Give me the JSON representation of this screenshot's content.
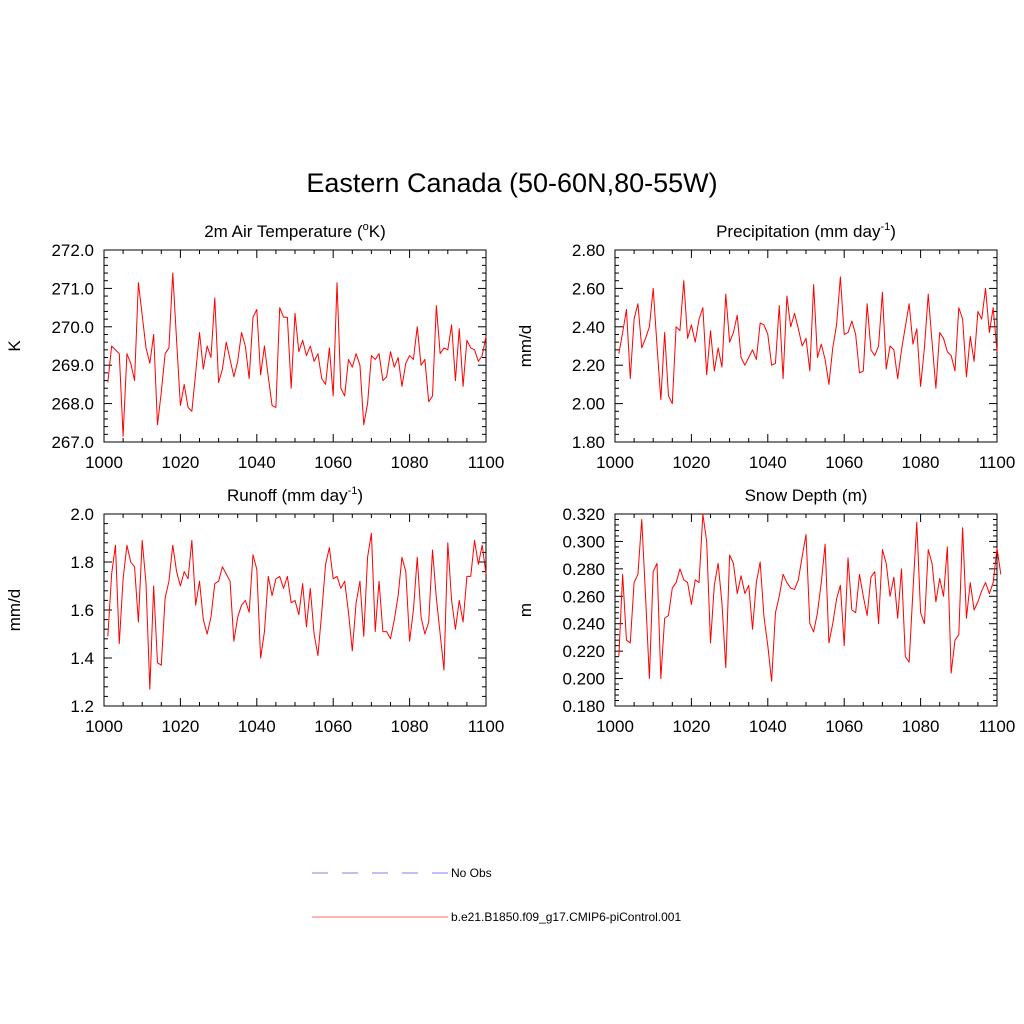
{
  "title": "Eastern Canada (50-60N,80-55W)",
  "legend": [
    {
      "label": "No Obs",
      "color": "#9999ee",
      "style": "dashed"
    },
    {
      "label": "b.e21.B1850.f09_g17.CMIP6-piControl.001",
      "color": "#ff8888",
      "style": "solid"
    }
  ],
  "chart_data": [
    {
      "type": "line",
      "title": "2m Air Temperature (",
      "title_sup": "o",
      "title_suffix": "K)",
      "ylabel": "K",
      "xlim": [
        1000,
        1100
      ],
      "ylim": [
        267.0,
        272.0
      ],
      "xticks": [
        "1000",
        "1020",
        "1040",
        "1060",
        "1080",
        "1100"
      ],
      "yticks": [
        "267.0",
        "268.0",
        "269.0",
        "270.0",
        "271.0",
        "272.0"
      ],
      "x_start": 1001,
      "series": [
        {
          "color": "#ff0000",
          "values": [
            268.55,
            269.5,
            269.4,
            269.3,
            267.15,
            269.3,
            269.05,
            268.6,
            271.15,
            270.3,
            269.45,
            269.05,
            269.8,
            267.45,
            268.3,
            269.3,
            269.45,
            271.4,
            269.65,
            267.95,
            268.5,
            267.9,
            267.8,
            268.8,
            269.85,
            268.9,
            269.5,
            269.2,
            270.75,
            268.55,
            268.9,
            269.6,
            269.15,
            268.7,
            269.1,
            269.85,
            269.5,
            268.65,
            270.25,
            270.45,
            268.75,
            269.5,
            268.7,
            267.95,
            267.9,
            270.5,
            270.25,
            270.25,
            268.4,
            270.35,
            269.35,
            269.65,
            269.25,
            269.5,
            269.1,
            269.3,
            268.65,
            268.5,
            269.45,
            268.2,
            271.15,
            268.4,
            268.2,
            269.15,
            268.95,
            269.3,
            269.0,
            267.45,
            268.0,
            269.25,
            269.15,
            269.3,
            268.6,
            268.7,
            269.35,
            268.95,
            269.2,
            268.45,
            269.05,
            269.25,
            269.15,
            270.0,
            269.0,
            269.15,
            268.05,
            268.2,
            270.55,
            269.3,
            269.45,
            269.4,
            270.05,
            268.6,
            269.95,
            268.45,
            269.65,
            269.45,
            269.4,
            269.1,
            269.25,
            269.75
          ]
        }
      ]
    },
    {
      "type": "line",
      "title": "Precipitation (mm day",
      "title_sup": "-1",
      "title_suffix": ")",
      "ylabel": "mm/d",
      "xlim": [
        1000,
        1100
      ],
      "ylim": [
        1.8,
        2.8
      ],
      "xticks": [
        "1000",
        "1020",
        "1040",
        "1060",
        "1080",
        "1100"
      ],
      "yticks": [
        "1.80",
        "2.00",
        "2.20",
        "2.40",
        "2.60",
        "2.80"
      ],
      "x_start": 1001,
      "series": [
        {
          "color": "#ff0000",
          "values": [
            2.26,
            2.37,
            2.49,
            2.13,
            2.44,
            2.52,
            2.29,
            2.34,
            2.4,
            2.6,
            2.3,
            2.02,
            2.37,
            2.04,
            2.0,
            2.4,
            2.38,
            2.64,
            2.34,
            2.41,
            2.32,
            2.44,
            2.5,
            2.15,
            2.38,
            2.17,
            2.29,
            2.19,
            2.57,
            2.32,
            2.37,
            2.46,
            2.24,
            2.2,
            2.24,
            2.28,
            2.23,
            2.42,
            2.41,
            2.36,
            2.2,
            2.21,
            2.51,
            2.13,
            2.56,
            2.4,
            2.47,
            2.39,
            2.3,
            2.34,
            2.17,
            2.62,
            2.24,
            2.31,
            2.23,
            2.1,
            2.29,
            2.41,
            2.66,
            2.36,
            2.37,
            2.43,
            2.36,
            2.16,
            2.17,
            2.52,
            2.28,
            2.25,
            2.3,
            2.58,
            2.18,
            2.3,
            2.28,
            2.13,
            2.28,
            2.4,
            2.52,
            2.31,
            2.39,
            2.09,
            2.29,
            2.57,
            2.32,
            2.08,
            2.37,
            2.34,
            2.27,
            2.25,
            2.17,
            2.5,
            2.44,
            2.14,
            2.35,
            2.22,
            2.48,
            2.44,
            2.6,
            2.37,
            2.5,
            2.27
          ]
        }
      ]
    },
    {
      "type": "line",
      "title": "Runoff (mm day",
      "title_sup": "-1",
      "title_suffix": ")",
      "ylabel": "mm/d",
      "xlim": [
        1000,
        1100
      ],
      "ylim": [
        1.2,
        2.0
      ],
      "xticks": [
        "1000",
        "1020",
        "1040",
        "1060",
        "1080",
        "1100"
      ],
      "yticks": [
        "1.2",
        "1.4",
        "1.6",
        "1.8",
        "2.0"
      ],
      "x_start": 1001,
      "series": [
        {
          "color": "#ff0000",
          "values": [
            1.49,
            1.75,
            1.87,
            1.46,
            1.73,
            1.87,
            1.8,
            1.78,
            1.55,
            1.89,
            1.71,
            1.27,
            1.7,
            1.38,
            1.37,
            1.65,
            1.72,
            1.87,
            1.76,
            1.7,
            1.76,
            1.73,
            1.89,
            1.62,
            1.72,
            1.56,
            1.5,
            1.57,
            1.71,
            1.72,
            1.78,
            1.75,
            1.72,
            1.47,
            1.57,
            1.62,
            1.64,
            1.59,
            1.83,
            1.77,
            1.4,
            1.51,
            1.74,
            1.66,
            1.73,
            1.74,
            1.69,
            1.74,
            1.63,
            1.64,
            1.58,
            1.71,
            1.53,
            1.69,
            1.5,
            1.41,
            1.59,
            1.79,
            1.86,
            1.73,
            1.74,
            1.69,
            1.72,
            1.59,
            1.43,
            1.63,
            1.72,
            1.49,
            1.82,
            1.92,
            1.51,
            1.72,
            1.51,
            1.51,
            1.48,
            1.56,
            1.66,
            1.82,
            1.76,
            1.47,
            1.6,
            1.82,
            1.57,
            1.5,
            1.55,
            1.85,
            1.65,
            1.5,
            1.35,
            1.88,
            1.64,
            1.52,
            1.64,
            1.55,
            1.74,
            1.74,
            1.89,
            1.79,
            1.87,
            1.75
          ]
        }
      ]
    },
    {
      "type": "line",
      "title": "Snow Depth (m)",
      "title_sup": "",
      "title_suffix": "",
      "ylabel": "m",
      "xlim": [
        1000,
        1100
      ],
      "ylim": [
        0.18,
        0.32
      ],
      "xticks": [
        "1000",
        "1020",
        "1040",
        "1060",
        "1080",
        "1100"
      ],
      "yticks": [
        "0.180",
        "0.200",
        "0.220",
        "0.240",
        "0.260",
        "0.280",
        "0.300",
        "0.320"
      ],
      "x_start": 1001,
      "series": [
        {
          "color": "#ff0000",
          "values": [
            0.216,
            0.276,
            0.228,
            0.226,
            0.27,
            0.276,
            0.316,
            0.26,
            0.2,
            0.278,
            0.284,
            0.2,
            0.244,
            0.246,
            0.266,
            0.27,
            0.28,
            0.272,
            0.27,
            0.254,
            0.272,
            0.27,
            0.32,
            0.3,
            0.226,
            0.268,
            0.284,
            0.255,
            0.208,
            0.29,
            0.284,
            0.262,
            0.275,
            0.262,
            0.268,
            0.236,
            0.27,
            0.285,
            0.245,
            0.224,
            0.198,
            0.248,
            0.26,
            0.276,
            0.27,
            0.266,
            0.265,
            0.272,
            0.289,
            0.305,
            0.24,
            0.234,
            0.248,
            0.27,
            0.298,
            0.226,
            0.24,
            0.258,
            0.268,
            0.224,
            0.288,
            0.25,
            0.248,
            0.276,
            0.26,
            0.246,
            0.274,
            0.278,
            0.24,
            0.294,
            0.284,
            0.26,
            0.274,
            0.244,
            0.28,
            0.216,
            0.212,
            0.264,
            0.314,
            0.248,
            0.24,
            0.294,
            0.284,
            0.256,
            0.273,
            0.26,
            0.296,
            0.204,
            0.228,
            0.232,
            0.31,
            0.244,
            0.27,
            0.25,
            0.256,
            0.264,
            0.27,
            0.262,
            0.27,
            0.295,
            0.276
          ]
        }
      ]
    }
  ]
}
